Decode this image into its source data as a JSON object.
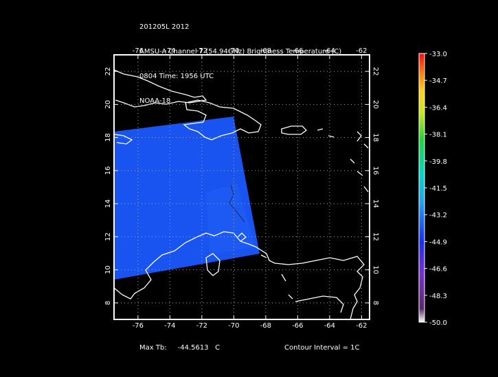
{
  "header": {
    "line1": "201205L 2012",
    "line2": "AMSU-A Channel 7 (54.94GHz) Brightness Temperature (C)",
    "line3": "0804 Time: 1956 UTC",
    "line4": "NOAA-18"
  },
  "map": {
    "lon_labels": [
      "-76",
      "-74",
      "-72",
      "-70",
      "-68",
      "-66",
      "-64",
      "-62"
    ],
    "lat_labels": [
      "8",
      "10",
      "12",
      "14",
      "16",
      "18",
      "20",
      "22"
    ],
    "lon_range": [
      -77.5,
      -61.5
    ],
    "lat_range": [
      7,
      23
    ],
    "swath_color": "#1a54f0"
  },
  "colorbar": {
    "labels": [
      "-33.0",
      "-34.7",
      "-36.4",
      "-38.1",
      "-39.8",
      "-41.5",
      "-43.2",
      "-44.9",
      "-46.6",
      "-48.3",
      "-50.0"
    ]
  },
  "footer": {
    "max_tb_label": "Max Tb:",
    "max_tb_value": "-44.5613",
    "max_tb_unit": "C",
    "contour": "Contour Interval = 1C"
  }
}
